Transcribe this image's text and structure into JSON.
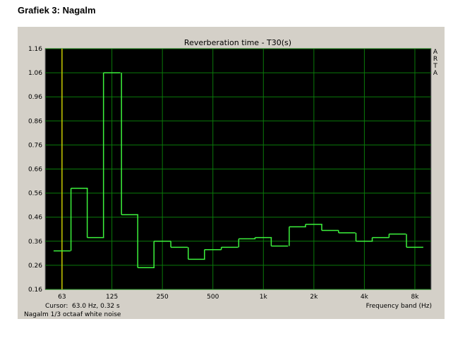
{
  "heading": "Grafiek 3: Nagalm",
  "chart_data": {
    "type": "step",
    "title": "Reverberation time - T30(s)",
    "x_label": "Frequency band (Hz)",
    "side_label": "ARTA",
    "cursor_label": "Cursor:",
    "cursor_text": "63.0 Hz, 0.32 s",
    "footnote": "Nagalm 1/3 octaaf white noise",
    "log_x": true,
    "grid": true,
    "x": [
      63,
      80,
      100,
      125,
      160,
      200,
      250,
      315,
      400,
      500,
      630,
      800,
      1000,
      1250,
      1600,
      2000,
      2500,
      3150,
      4000,
      5000,
      6300,
      8000
    ],
    "series": [
      {
        "name": "T30",
        "color": "#3cf23c",
        "values": [
          0.32,
          0.58,
          0.375,
          1.06,
          0.47,
          0.25,
          0.36,
          0.335,
          0.285,
          0.325,
          0.335,
          0.37,
          0.375,
          0.34,
          0.42,
          0.43,
          0.405,
          0.395,
          0.36,
          0.375,
          0.39,
          0.335
        ]
      }
    ],
    "xlim": [
      50,
      10000
    ],
    "xticks": [
      63,
      125,
      250,
      500,
      {
        "value": 1000,
        "label": "1k"
      },
      {
        "value": 2000,
        "label": "2k"
      },
      {
        "value": 4000,
        "label": "4k"
      },
      {
        "value": 8000,
        "label": "8k"
      }
    ],
    "ylim": [
      0.16,
      1.16
    ],
    "yticks": [
      0.16,
      0.26,
      0.36,
      0.46,
      0.56,
      0.66,
      0.76,
      0.86,
      0.96,
      1.06,
      1.16
    ]
  }
}
